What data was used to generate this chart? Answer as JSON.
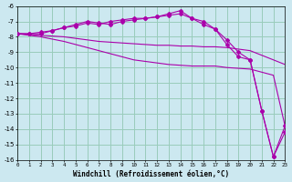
{
  "xlabel": "Windchill (Refroidissement éolien,°C)",
  "bg_color": "#cce8f0",
  "grid_color": "#99ccbb",
  "line_color": "#aa00aa",
  "xmin": 0,
  "xmax": 23,
  "ymin": -16,
  "ymax": -6,
  "yticks": [
    -6,
    -7,
    -8,
    -9,
    -10,
    -11,
    -12,
    -13,
    -14,
    -15,
    -16
  ],
  "xticks": [
    0,
    1,
    2,
    3,
    4,
    5,
    6,
    7,
    8,
    9,
    10,
    11,
    12,
    13,
    14,
    15,
    16,
    17,
    18,
    19,
    20,
    21,
    22,
    23
  ],
  "lines": [
    {
      "x": [
        0,
        1,
        2,
        3,
        4,
        5,
        6,
        7,
        8,
        9,
        10,
        11,
        12,
        13,
        14,
        15,
        16,
        17,
        18,
        19,
        20,
        21,
        22,
        23
      ],
      "y": [
        -7.8,
        -7.8,
        -7.8,
        -7.6,
        -7.4,
        -7.2,
        -7.0,
        -7.1,
        -7.2,
        -7.0,
        -6.9,
        -6.8,
        -6.7,
        -6.5,
        -6.3,
        -6.8,
        -7.2,
        -7.5,
        -8.5,
        -9.3,
        -9.5,
        -12.8,
        -15.8,
        -13.8
      ],
      "marker": true
    },
    {
      "x": [
        0,
        1,
        2,
        3,
        4,
        5,
        6,
        7,
        8,
        9,
        10,
        11,
        12,
        13,
        14,
        15,
        16,
        17,
        18,
        19,
        20,
        21,
        22,
        23
      ],
      "y": [
        -7.8,
        -7.8,
        -7.7,
        -7.6,
        -7.4,
        -7.3,
        -7.1,
        -7.2,
        -7.0,
        -6.9,
        -6.8,
        -6.8,
        -6.7,
        -6.6,
        -6.5,
        -6.8,
        -7.0,
        -7.5,
        -8.2,
        -9.0,
        -9.5,
        -12.8,
        -15.8,
        -14.2
      ],
      "marker": true
    },
    {
      "x": [
        0,
        1,
        2,
        3,
        4,
        5,
        6,
        7,
        8,
        9,
        10,
        11,
        12,
        13,
        14,
        15,
        16,
        17,
        18,
        19,
        20,
        21,
        22,
        23
      ],
      "y": [
        -7.8,
        -7.85,
        -7.9,
        -7.95,
        -8.0,
        -8.1,
        -8.2,
        -8.3,
        -8.35,
        -8.4,
        -8.45,
        -8.5,
        -8.55,
        -8.55,
        -8.6,
        -8.6,
        -8.65,
        -8.65,
        -8.7,
        -8.8,
        -8.9,
        -9.2,
        -9.5,
        -9.8
      ],
      "marker": false
    },
    {
      "x": [
        0,
        1,
        2,
        3,
        4,
        5,
        6,
        7,
        8,
        9,
        10,
        11,
        12,
        13,
        14,
        15,
        16,
        17,
        18,
        19,
        20,
        21,
        22,
        23
      ],
      "y": [
        -7.8,
        -7.9,
        -8.0,
        -8.15,
        -8.3,
        -8.5,
        -8.7,
        -8.9,
        -9.1,
        -9.3,
        -9.5,
        -9.6,
        -9.7,
        -9.8,
        -9.85,
        -9.9,
        -9.9,
        -9.9,
        -10.0,
        -10.05,
        -10.1,
        -10.3,
        -10.5,
        -13.8
      ],
      "marker": false
    }
  ]
}
